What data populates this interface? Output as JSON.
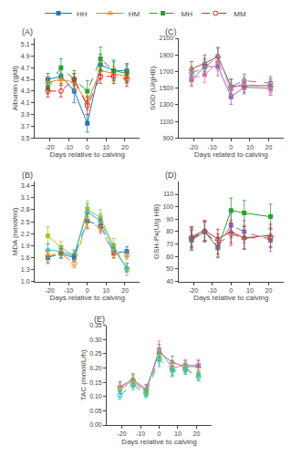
{
  "chart_data": [
    {
      "type": "line",
      "title": "(A)",
      "x": [
        -21,
        -14,
        -7,
        0,
        7,
        14,
        21
      ],
      "xlabel": "Days relative to calving",
      "ylabel": "Albumin (g/dl)",
      "xlim": [
        -28,
        28
      ],
      "xticks": [
        -20,
        -10,
        0,
        10,
        20
      ],
      "ylim": [
        3.5,
        5.2
      ],
      "yticks": [
        3.5,
        3.7,
        3.9,
        4.1,
        4.3,
        4.5,
        4.7,
        4.9,
        5.1
      ],
      "grid": false,
      "legend": "top",
      "series": [
        {
          "name": "HH",
          "marker": "square",
          "line_style": "solid",
          "values": [
            4.5,
            4.55,
            4.3,
            3.75,
            4.75,
            4.65,
            4.65
          ],
          "errors": [
            0.1,
            0.12,
            0.2,
            0.15,
            0.18,
            0.15,
            0.12
          ]
        },
        {
          "name": "HM",
          "marker": "triangle-up-open",
          "line_style": "solid",
          "values": [
            4.45,
            4.5,
            4.45,
            4.1,
            4.65,
            4.6,
            4.55
          ],
          "errors": [
            0.1,
            0.1,
            0.15,
            0.12,
            0.15,
            0.12,
            0.12
          ]
        },
        {
          "name": "MH",
          "marker": "square",
          "line_style": "dash",
          "values": [
            4.35,
            4.7,
            4.5,
            4.3,
            4.85,
            4.65,
            4.6
          ],
          "errors": [
            0.1,
            0.15,
            0.15,
            0.18,
            0.2,
            0.18,
            0.15
          ]
        },
        {
          "name": "MM",
          "marker": "circle-open",
          "line_style": "dash",
          "values": [
            4.3,
            4.3,
            4.5,
            4.05,
            4.55,
            4.55,
            4.5
          ],
          "errors": [
            0.1,
            0.1,
            0.1,
            0.15,
            0.12,
            0.12,
            0.12
          ]
        }
      ]
    },
    {
      "type": "line",
      "title": "(C)",
      "x": [
        -21,
        -14,
        -7,
        0,
        7,
        21
      ],
      "xlabel": "Days related to calving",
      "ylabel": "SOD (U/gHB)",
      "xlim": [
        -28,
        28
      ],
      "xticks": [
        -20,
        -10,
        0,
        10,
        20
      ],
      "ylim": [
        900,
        2100
      ],
      "yticks": [
        900,
        1100,
        1300,
        1500,
        1700,
        1900,
        2100
      ],
      "grid": false,
      "legend": "top",
      "series": [
        {
          "name": "HH",
          "marker": "square",
          "line_style": "solid",
          "values": [
            1600,
            1760,
            1760,
            1395,
            1510,
            1500
          ],
          "errors": [
            80,
            100,
            110,
            90,
            80,
            80
          ]
        },
        {
          "name": "HM",
          "marker": "triangle-up-open",
          "line_style": "solid",
          "values": [
            1730,
            1800,
            1880,
            1520,
            1530,
            1530
          ],
          "errors": [
            90,
            100,
            110,
            90,
            80,
            80
          ]
        },
        {
          "name": "MH",
          "marker": "square",
          "line_style": "dash",
          "values": [
            1620,
            1660,
            1810,
            1490,
            1560,
            1490
          ],
          "errors": [
            80,
            90,
            100,
            80,
            80,
            75
          ]
        },
        {
          "name": "MM",
          "marker": "circle-open",
          "line_style": "dash",
          "values": [
            1680,
            1750,
            1880,
            1520,
            1590,
            1560
          ],
          "errors": [
            80,
            90,
            100,
            85,
            80,
            80
          ]
        }
      ]
    },
    {
      "type": "line",
      "title": "(B)",
      "x": [
        -21,
        -14,
        -7,
        0,
        7,
        14,
        21
      ],
      "xlabel": "Days relative to calving",
      "ylabel": "MDA (nmol/ml)",
      "xlim": [
        -28,
        28
      ],
      "xticks": [
        -20,
        -10,
        0,
        10,
        20
      ],
      "ylim": [
        1.0,
        3.5
      ],
      "yticks": [
        {
          "value": 1.0,
          "label": "1.0"
        },
        1.3,
        1.6,
        1.9,
        2.2,
        2.5,
        2.8,
        3.1,
        3.4
      ],
      "grid": false,
      "legend": "top",
      "series": [
        {
          "name": "HH",
          "marker": "square",
          "line_style": "solid",
          "values": [
            2.15,
            1.85,
            1.65,
            2.82,
            2.6,
            1.9,
            1.3
          ],
          "errors": [
            0.22,
            0.15,
            0.15,
            0.2,
            0.2,
            0.18,
            0.15
          ]
        },
        {
          "name": "HM",
          "marker": "triangle-up-open",
          "line_style": "solid",
          "values": [
            1.8,
            1.75,
            1.65,
            2.75,
            2.52,
            1.8,
            1.35
          ],
          "errors": [
            0.15,
            0.15,
            0.12,
            0.2,
            0.18,
            0.15,
            0.12
          ]
        },
        {
          "name": "MH",
          "marker": "square",
          "line_style": "dash",
          "values": [
            1.6,
            1.7,
            1.6,
            2.52,
            2.4,
            1.72,
            1.75
          ],
          "errors": [
            0.15,
            0.12,
            0.1,
            0.18,
            0.15,
            0.12,
            0.12
          ]
        },
        {
          "name": "MM",
          "marker": "circle-open",
          "line_style": "dash",
          "values": [
            1.65,
            1.7,
            1.45,
            2.5,
            2.35,
            1.7,
            1.65
          ],
          "errors": [
            0.15,
            0.1,
            0.1,
            0.18,
            0.15,
            0.12,
            0.1
          ]
        }
      ]
    },
    {
      "type": "line",
      "title": "(D)",
      "x": [
        -21,
        -14,
        -7,
        0,
        7,
        21
      ],
      "xlabel": "Days relative to calving",
      "ylabel": "GSH-Px(U/g HB)",
      "xlim": [
        -28,
        28
      ],
      "xticks": [
        -20,
        -10,
        0,
        10,
        20
      ],
      "ylim": [
        40,
        120
      ],
      "yticks": [
        40,
        50,
        60,
        70,
        80,
        90,
        100,
        110
      ],
      "grid": false,
      "legend": "top",
      "series": [
        {
          "name": "HH",
          "marker": "square",
          "line_style": "solid",
          "values": [
            73,
            80,
            67,
            97,
            95,
            92
          ],
          "errors": [
            8,
            8,
            8,
            10,
            10,
            10
          ]
        },
        {
          "name": "HM",
          "marker": "triangle-up-open",
          "line_style": "solid",
          "values": [
            76,
            81,
            74,
            80,
            75,
            77
          ],
          "errors": [
            8,
            8,
            8,
            9,
            9,
            9
          ]
        },
        {
          "name": "MH",
          "marker": "square",
          "line_style": "dash",
          "values": [
            74,
            80,
            68,
            85,
            80,
            73
          ],
          "errors": [
            8,
            8,
            8,
            10,
            9,
            9
          ]
        },
        {
          "name": "MM",
          "marker": "circle-open",
          "line_style": "dash",
          "values": [
            75,
            80,
            70,
            78,
            75,
            75
          ],
          "errors": [
            8,
            8,
            8,
            9,
            9,
            8
          ]
        }
      ]
    },
    {
      "type": "line",
      "title": "(E)",
      "x": [
        -21,
        -14,
        -7,
        0,
        7,
        14,
        21
      ],
      "xlabel": "Days relative to calving",
      "ylabel": "TAC (mmol/L/h)",
      "xlim": [
        -28,
        28
      ],
      "xticks": [
        -20,
        -10,
        0,
        10,
        20
      ],
      "ylim": [
        0,
        0.35
      ],
      "yticks": [
        {
          "value": 0,
          "label": "0.00"
        },
        0.05,
        {
          "value": 0.1,
          "label": "0.10"
        },
        0.15,
        {
          "value": 0.2,
          "label": "0.20"
        },
        0.25,
        {
          "value": 0.3,
          "label": "0.30"
        },
        0.35
      ],
      "grid": false,
      "legend": "top",
      "series": [
        {
          "name": "HH",
          "marker": "square",
          "line_style": "solid",
          "values": [
            0.13,
            0.155,
            0.12,
            0.265,
            0.2,
            0.21,
            0.21
          ],
          "errors": [
            0.018,
            0.02,
            0.018,
            0.03,
            0.025,
            0.02,
            0.02
          ]
        },
        {
          "name": "HM",
          "marker": "triangle-up-open",
          "line_style": "solid",
          "values": [
            0.135,
            0.16,
            0.125,
            0.255,
            0.22,
            0.205,
            0.205
          ],
          "errors": [
            0.018,
            0.02,
            0.018,
            0.028,
            0.022,
            0.02,
            0.02
          ]
        },
        {
          "name": "MH",
          "marker": "square",
          "line_style": "dash",
          "values": [
            0.125,
            0.15,
            0.115,
            0.24,
            0.195,
            0.2,
            0.175
          ],
          "errors": [
            0.015,
            0.018,
            0.015,
            0.025,
            0.022,
            0.018,
            0.018
          ]
        },
        {
          "name": "MM",
          "marker": "circle-open",
          "line_style": "dash",
          "values": [
            0.105,
            0.14,
            0.11,
            0.23,
            0.19,
            0.195,
            0.17
          ],
          "errors": [
            0.015,
            0.016,
            0.014,
            0.025,
            0.02,
            0.018,
            0.015
          ]
        }
      ]
    }
  ]
}
